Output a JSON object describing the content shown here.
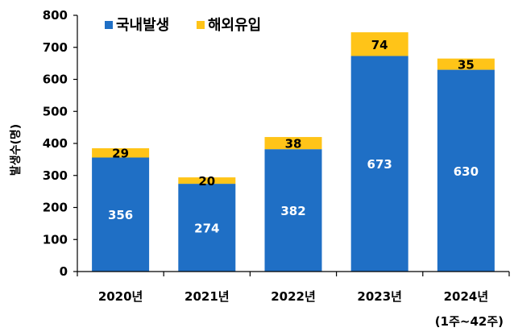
{
  "chart_data": {
    "type": "bar",
    "stacked": true,
    "categories": [
      "2020년",
      "2021년",
      "2022년",
      "2023년",
      "2024년"
    ],
    "category_note": {
      "index": 4,
      "text": "(1주~42주)"
    },
    "series": [
      {
        "name": "국내발생",
        "values": [
          356,
          274,
          382,
          673,
          630
        ],
        "color": "#1f6fc5",
        "label_color": "#ffffff"
      },
      {
        "name": "해외유입",
        "values": [
          29,
          20,
          38,
          74,
          35
        ],
        "color": "#ffc418",
        "label_color": "#000000"
      }
    ],
    "ylabel": "발생수(명)",
    "ylim": [
      0,
      800
    ],
    "yticks": [
      0,
      100,
      200,
      300,
      400,
      500,
      600,
      700,
      800
    ],
    "grid": false,
    "legend": "top-left"
  }
}
